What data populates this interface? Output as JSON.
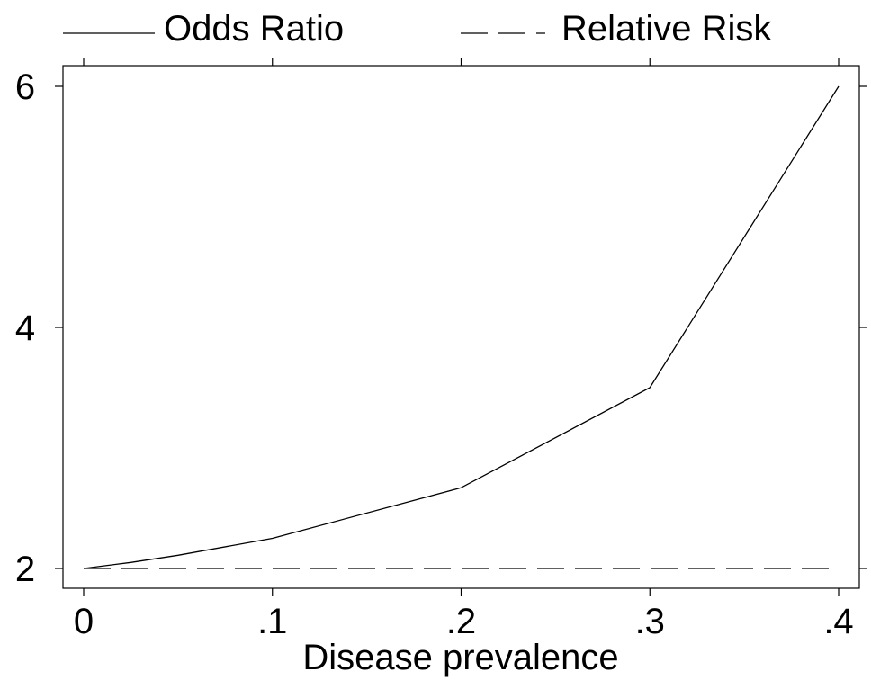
{
  "chart_data": {
    "type": "line",
    "title": "",
    "xlabel": "Disease prevalence",
    "ylabel": "",
    "xlim": [
      0,
      0.4
    ],
    "ylim": [
      2,
      6
    ],
    "x_ticks": [
      {
        "value": 0,
        "label": "0"
      },
      {
        "value": 0.1,
        "label": ".1"
      },
      {
        "value": 0.2,
        "label": ".2"
      },
      {
        "value": 0.3,
        "label": ".3"
      },
      {
        "value": 0.4,
        "label": ".4"
      }
    ],
    "y_ticks": [
      {
        "value": 2,
        "label": "2"
      },
      {
        "value": 4,
        "label": "4"
      },
      {
        "value": 6,
        "label": "6"
      }
    ],
    "grid": false,
    "legend_position": "top",
    "series": [
      {
        "name": "Odds Ratio",
        "style": "solid",
        "color": "#000000",
        "x": [
          0,
          0.025,
          0.05,
          0.1,
          0.2,
          0.3,
          0.4
        ],
        "y": [
          2,
          2.05,
          2.11,
          2.25,
          2.67,
          3.5,
          6
        ]
      },
      {
        "name": "Relative Risk",
        "style": "dashed",
        "color": "#000000",
        "x": [
          0,
          0.1,
          0.2,
          0.3,
          0.4
        ],
        "y": [
          2,
          2,
          2,
          2,
          2
        ]
      }
    ]
  }
}
